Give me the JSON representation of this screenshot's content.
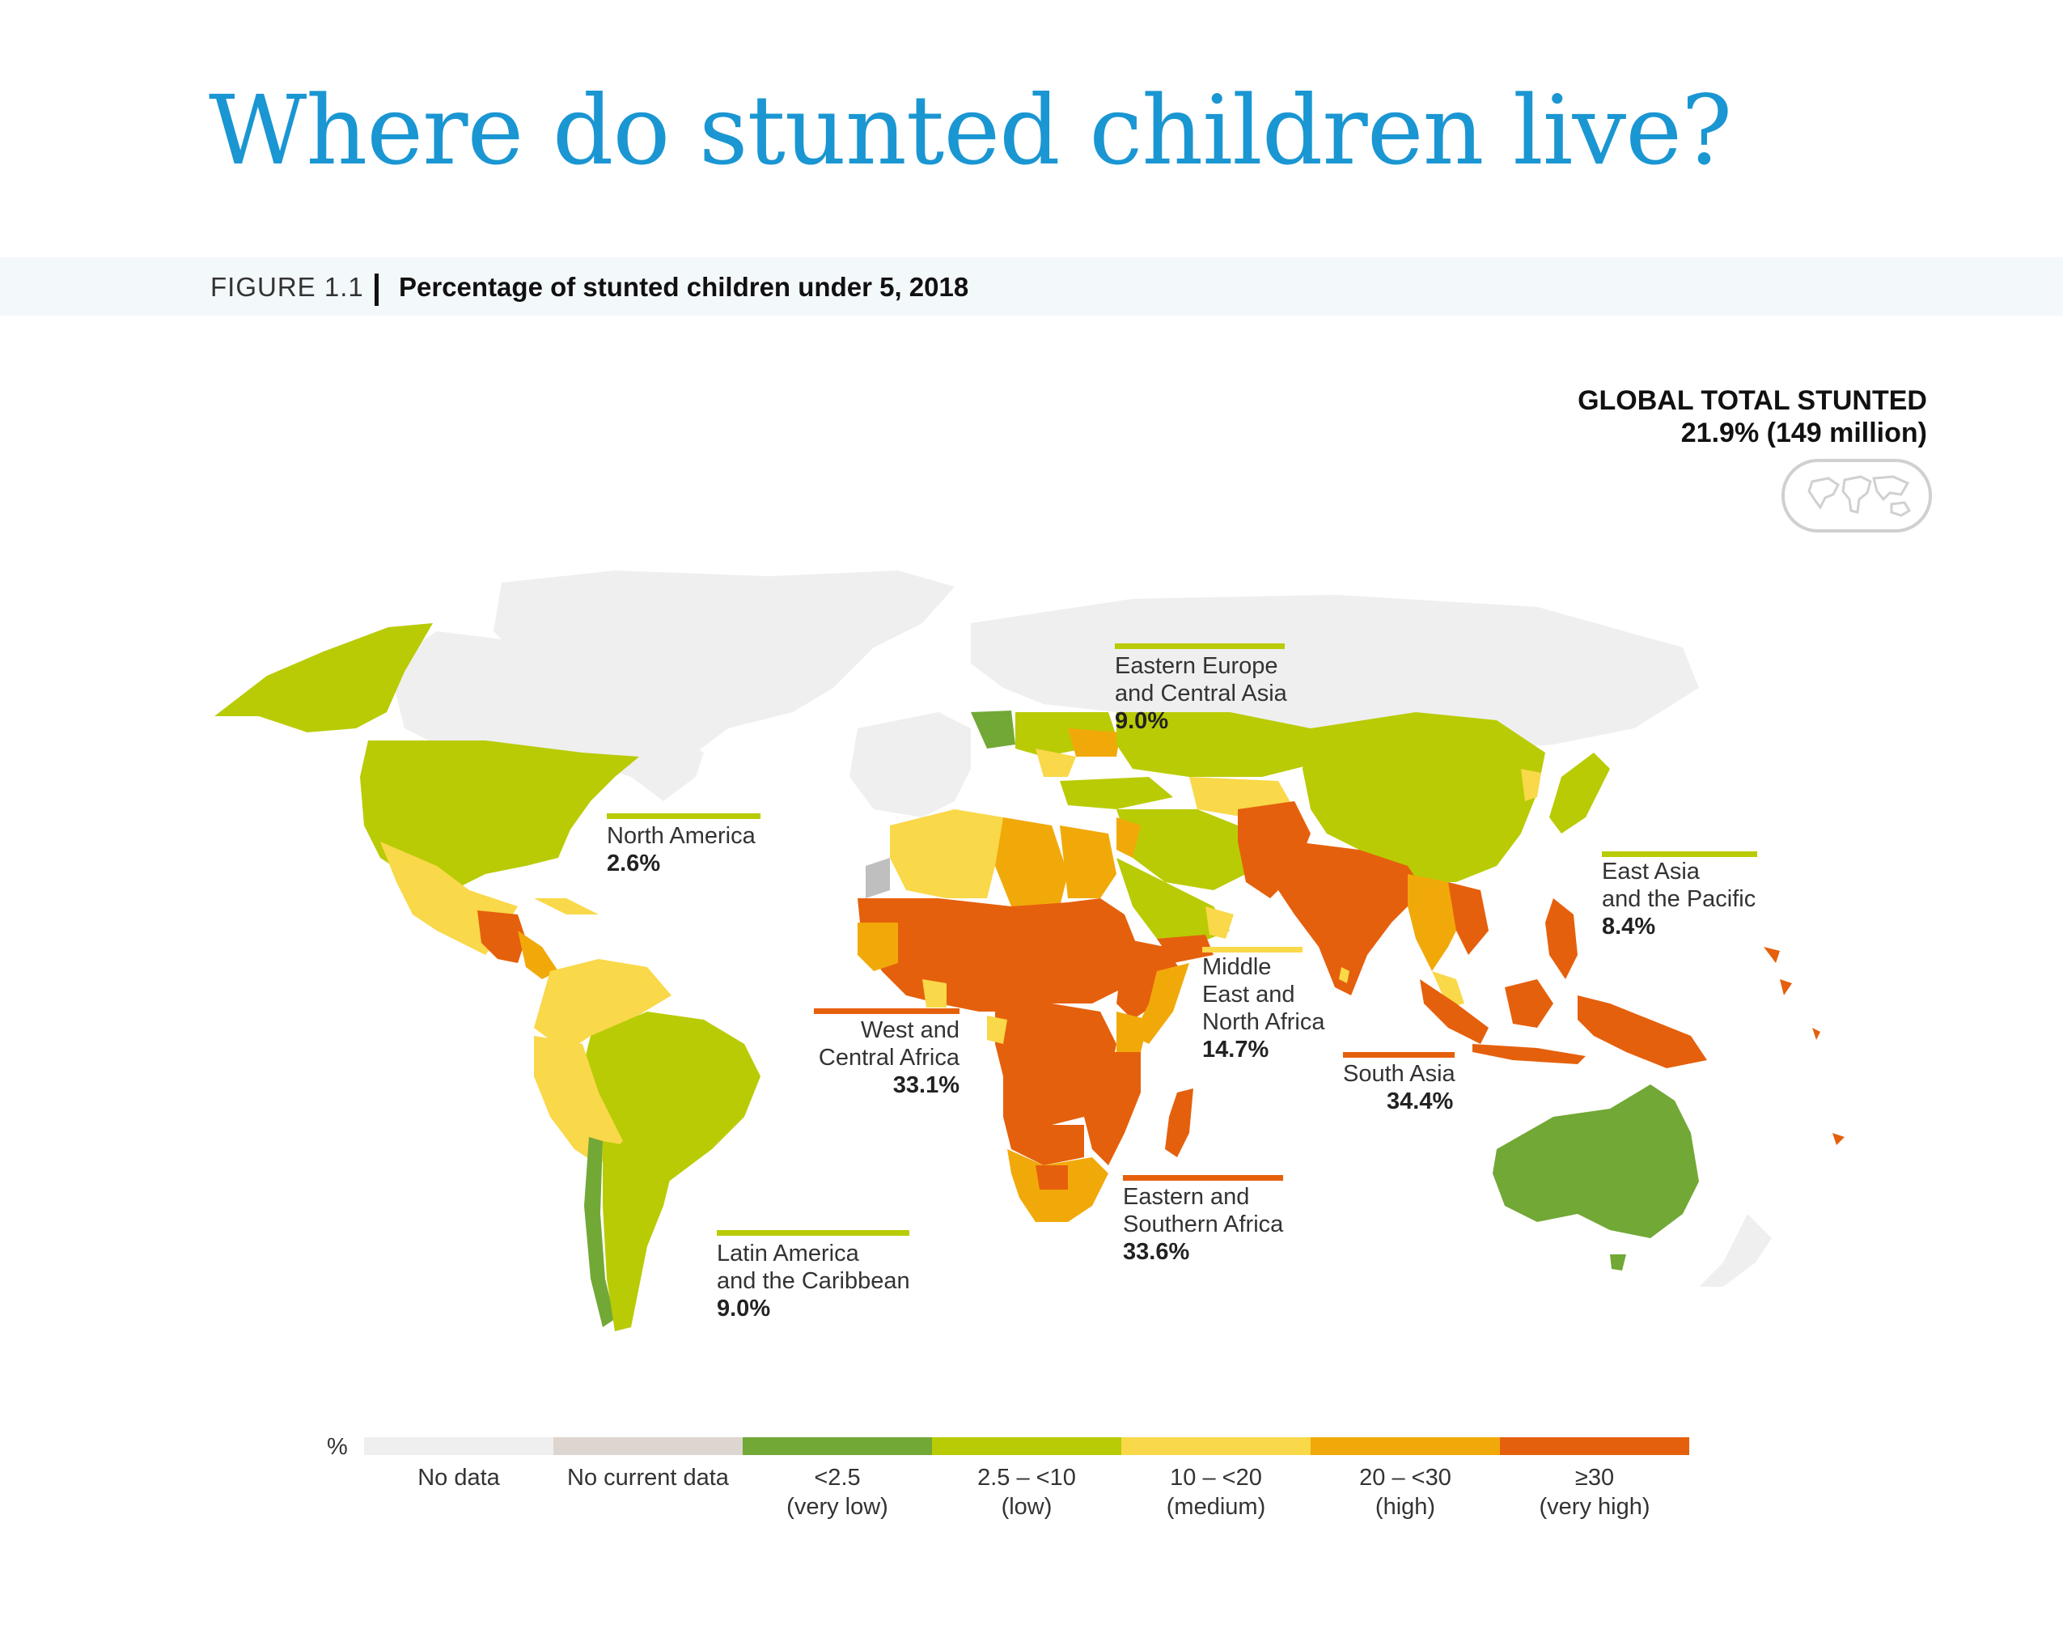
{
  "title": "Where do stunted children live?",
  "figure": {
    "label": "FIGURE 1.1",
    "caption": "Percentage of stunted children under 5, 2018"
  },
  "global": {
    "title": "GLOBAL TOTAL STUNTED",
    "value": "21.9% (149 million)",
    "icon": "world-map-badge-icon"
  },
  "colors": {
    "no_data": "#efefef",
    "no_current_data": "#ddd5cf",
    "very_low": "#72a836",
    "low": "#b9cb04",
    "medium": "#f9d849",
    "high": "#f1a90a",
    "very_high": "#e5600c",
    "no_data_region": "#bfbfbf"
  },
  "regions": [
    {
      "id": "north-america",
      "name": "North America",
      "value": "2.6%",
      "category": "low"
    },
    {
      "id": "eastern-europe-central-asia",
      "name_lines": [
        "Eastern Europe",
        "and Central Asia"
      ],
      "value": "9.0%",
      "category": "low"
    },
    {
      "id": "east-asia-pacific",
      "name_lines": [
        "East Asia",
        "and the Pacific"
      ],
      "value": "8.4%",
      "category": "low"
    },
    {
      "id": "middle-east-north-africa",
      "name_lines": [
        "Middle",
        "East and",
        "North Africa"
      ],
      "value": "14.7%",
      "category": "medium"
    },
    {
      "id": "west-central-africa",
      "name_lines": [
        "West and",
        "Central Africa"
      ],
      "value": "33.1%",
      "category": "very_high"
    },
    {
      "id": "south-asia",
      "name": "South Asia",
      "value": "34.4%",
      "category": "very_high"
    },
    {
      "id": "eastern-southern-africa",
      "name_lines": [
        "Eastern and",
        "Southern Africa"
      ],
      "value": "33.6%",
      "category": "very_high"
    },
    {
      "id": "latin-america-caribbean",
      "name_lines": [
        "Latin America",
        "and the Caribbean"
      ],
      "value": "9.0%",
      "category": "low"
    }
  ],
  "legend": {
    "unit": "%",
    "items": [
      {
        "label": "No data",
        "sub": "",
        "color_key": "no_data"
      },
      {
        "label": "No current data",
        "sub": "",
        "color_key": "no_current_data"
      },
      {
        "label": "<2.5",
        "sub": "(very low)",
        "color_key": "very_low"
      },
      {
        "label": "2.5 – <10",
        "sub": "(low)",
        "color_key": "low"
      },
      {
        "label": "10 – <20",
        "sub": "(medium)",
        "color_key": "medium"
      },
      {
        "label": "20 – <30",
        "sub": "(high)",
        "color_key": "high"
      },
      {
        "label": "≥30",
        "sub": "(very high)",
        "color_key": "very_high"
      }
    ]
  }
}
